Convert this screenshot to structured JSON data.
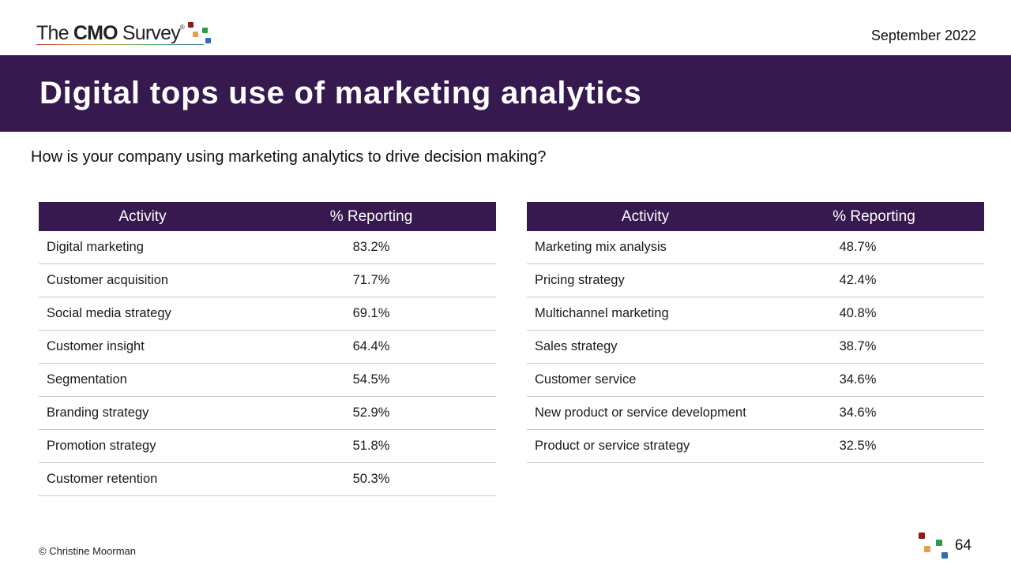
{
  "header": {
    "logo_pre": "The ",
    "logo_bold": "CMO",
    "logo_post": " Survey",
    "logo_reg": "®",
    "date": "September 2022"
  },
  "banner": {
    "title": "Digital tops use of marketing analytics"
  },
  "question": "How is your company using marketing analytics to drive decision making?",
  "tables": {
    "left": {
      "headers": [
        "Activity",
        "% Reporting"
      ],
      "rows": [
        {
          "activity": "Digital marketing",
          "pct": "83.2%"
        },
        {
          "activity": "Customer acquisition",
          "pct": "71.7%"
        },
        {
          "activity": "Social media strategy",
          "pct": "69.1%"
        },
        {
          "activity": "Customer insight",
          "pct": "64.4%"
        },
        {
          "activity": "Segmentation",
          "pct": "54.5%"
        },
        {
          "activity": "Branding strategy",
          "pct": "52.9%"
        },
        {
          "activity": "Promotion strategy",
          "pct": "51.8%"
        },
        {
          "activity": "Customer retention",
          "pct": "50.3%"
        }
      ]
    },
    "right": {
      "headers": [
        "Activity",
        "% Reporting"
      ],
      "rows": [
        {
          "activity": "Marketing mix analysis",
          "pct": "48.7%"
        },
        {
          "activity": "Pricing strategy",
          "pct": "42.4%"
        },
        {
          "activity": "Multichannel marketing",
          "pct": "40.8%"
        },
        {
          "activity": "Sales strategy",
          "pct": "38.7%"
        },
        {
          "activity": "Customer service",
          "pct": "34.6%"
        },
        {
          "activity": "New product or service development",
          "pct": "34.6%"
        },
        {
          "activity": "Product or service strategy",
          "pct": "32.5%"
        }
      ]
    }
  },
  "footer": {
    "copyright": "© Christine Moorman",
    "page": "64"
  },
  "colors": {
    "banner": "#361a4f",
    "sq_red": "#8b1a1a",
    "sq_orange": "#e0a050",
    "sq_green": "#2e9a48",
    "sq_blue": "#2f6db5"
  }
}
